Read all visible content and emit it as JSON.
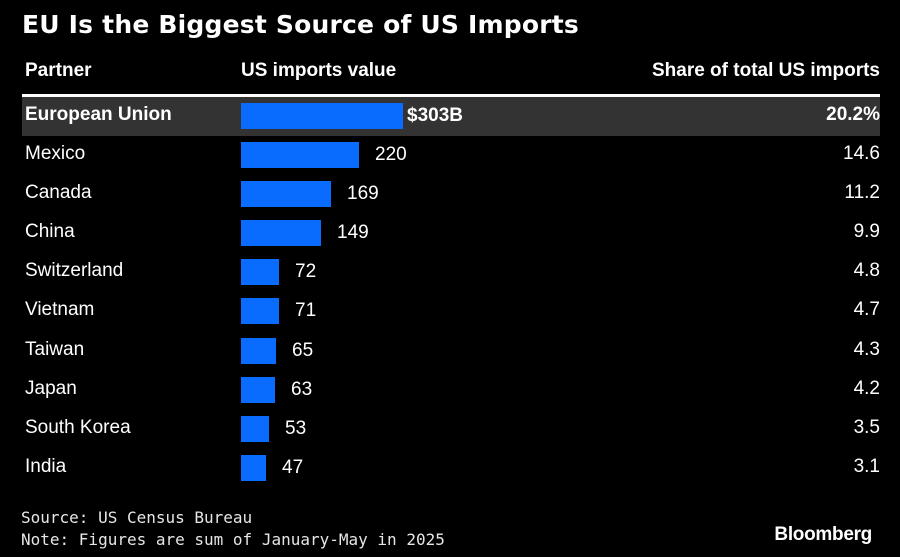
{
  "title": "EU Is the Biggest Source of US Imports",
  "header": {
    "partner": "Partner",
    "value": "US imports value",
    "share": "Share of total US imports"
  },
  "colors": {
    "bar": "#0a6cff",
    "highlight_row": "#333333",
    "background": "#000000"
  },
  "chart_data": {
    "type": "bar",
    "orientation": "horizontal",
    "title": "EU Is the Biggest Source of US Imports",
    "xlabel": "US imports value",
    "ylabel": "Partner",
    "unit": "$B",
    "categories": [
      "European Union",
      "Mexico",
      "Canada",
      "China",
      "Switzerland",
      "Vietnam",
      "Taiwan",
      "Japan",
      "South Korea",
      "India"
    ],
    "values": [
      303,
      220,
      169,
      149,
      72,
      71,
      65,
      63,
      53,
      47
    ],
    "value_labels": [
      "$303B",
      "220",
      "169",
      "149",
      "72",
      "71",
      "65",
      "63",
      "53",
      "47"
    ],
    "shares": [
      "20.2%",
      "14.6",
      "11.2",
      "9.9",
      "4.8",
      "4.7",
      "4.3",
      "4.2",
      "3.5",
      "3.1"
    ],
    "highlighted": "European Union",
    "xlim": [
      0,
      303
    ],
    "grid": false,
    "legend": "none"
  },
  "footer": {
    "source": "Source: US Census Bureau",
    "note": "Note: Figures are sum of January-May in 2025",
    "brand": "Bloomberg"
  }
}
